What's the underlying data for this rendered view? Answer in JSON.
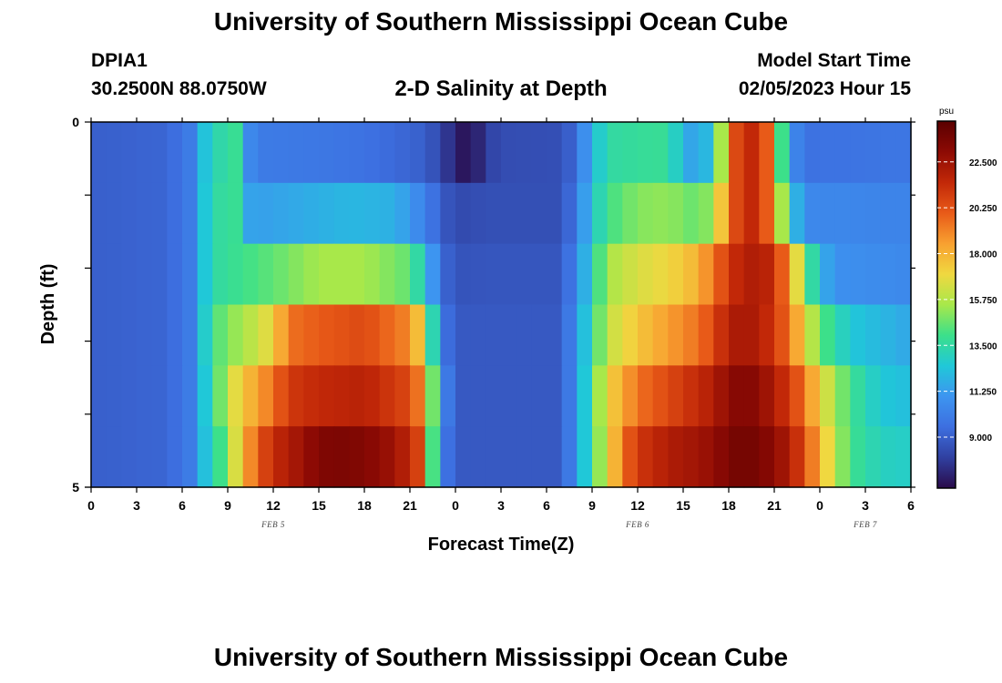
{
  "header": {
    "title": "University of Southern Mississippi Ocean Cube",
    "station": "DPIA1",
    "coordinates": "30.2500N  88.0750W",
    "plot_title": "2-D Salinity at Depth",
    "start_label": "Model Start Time",
    "start_value": "02/05/2023 Hour 15"
  },
  "footer": {
    "title": "University of Southern Mississippi Ocean Cube"
  },
  "colors": {
    "colormap": [
      "#2a0b4a",
      "#3040a0",
      "#3d6fe0",
      "#3d95f0",
      "#20c8d8",
      "#3ce08a",
      "#a8e84a",
      "#f0d840",
      "#f8a030",
      "#e85a18",
      "#c22808",
      "#8c0a04",
      "#5a0000"
    ]
  },
  "chart_data": {
    "type": "heatmap",
    "title": "2-D Salinity at Depth",
    "xlabel": "Forecast Time(Z)",
    "ylabel": "Depth (ft)",
    "x_tick_labels": [
      "0",
      "3",
      "6",
      "9",
      "12",
      "15",
      "18",
      "21",
      "0",
      "3",
      "6",
      "9",
      "12",
      "15",
      "18",
      "21",
      "0",
      "3",
      "6"
    ],
    "x_range_hours": [
      0,
      54
    ],
    "date_labels": [
      {
        "label": "FEB 5",
        "hour": 12
      },
      {
        "label": "FEB 6",
        "hour": 36
      },
      {
        "label": "FEB 7",
        "hour": 51
      }
    ],
    "y_tick_labels": [
      "0",
      "5"
    ],
    "ylim": [
      0,
      5
    ],
    "colorbar": {
      "unit": "psu",
      "min": 6.5,
      "max": 24.5,
      "ticks": [
        9.0,
        11.25,
        13.5,
        15.75,
        18.0,
        20.25,
        22.5
      ],
      "tick_labels": [
        "9.000",
        "11.250",
        "13.500",
        "15.750",
        "18.000",
        "20.250",
        "22.500"
      ]
    },
    "depth_layers": [
      {
        "layer": 1,
        "keyframes": [
          [
            0,
            9
          ],
          [
            5,
            9.2
          ],
          [
            6.5,
            10
          ],
          [
            7,
            11.5
          ],
          [
            8,
            13.2
          ],
          [
            9.5,
            13.8
          ],
          [
            10,
            11
          ],
          [
            11,
            10
          ],
          [
            16,
            9.8
          ],
          [
            19,
            9.5
          ],
          [
            22,
            9.0
          ],
          [
            23,
            8.2
          ],
          [
            24,
            7.2
          ],
          [
            25,
            6.5
          ],
          [
            26,
            8.0
          ],
          [
            27,
            8.4
          ],
          [
            31,
            8.5
          ],
          [
            32,
            9.5
          ],
          [
            33,
            12
          ],
          [
            34,
            13.5
          ],
          [
            36,
            13.7
          ],
          [
            38,
            13.8
          ],
          [
            39,
            12
          ],
          [
            40,
            11
          ],
          [
            41,
            13
          ],
          [
            41.5,
            15.5
          ],
          [
            42,
            19.5
          ],
          [
            43,
            21.5
          ],
          [
            44,
            21.5
          ],
          [
            44.5,
            20
          ],
          [
            45,
            17
          ],
          [
            46,
            11
          ],
          [
            47,
            9.6
          ],
          [
            54,
            9.8
          ]
        ]
      },
      {
        "layer": 2,
        "keyframes": [
          [
            0,
            9
          ],
          [
            5,
            9.2
          ],
          [
            6.5,
            10
          ],
          [
            7,
            11.5
          ],
          [
            8,
            13.5
          ],
          [
            9.5,
            13.8
          ],
          [
            10,
            11.5
          ],
          [
            11,
            11.3
          ],
          [
            17,
            12
          ],
          [
            20,
            11.8
          ],
          [
            22,
            10.2
          ],
          [
            23,
            9.0
          ],
          [
            24,
            8.3
          ],
          [
            26,
            8.5
          ],
          [
            31,
            8.5
          ],
          [
            32,
            10
          ],
          [
            33,
            12.5
          ],
          [
            34,
            14
          ],
          [
            36,
            15
          ],
          [
            38,
            15.2
          ],
          [
            40,
            14.5
          ],
          [
            41,
            15.5
          ],
          [
            42,
            19.5
          ],
          [
            43,
            21.5
          ],
          [
            44,
            21.5
          ],
          [
            44.5,
            20
          ],
          [
            45,
            18
          ],
          [
            46,
            13
          ],
          [
            47,
            10.5
          ],
          [
            54,
            10.3
          ]
        ]
      },
      {
        "layer": 3,
        "keyframes": [
          [
            0,
            9
          ],
          [
            5,
            9.2
          ],
          [
            6.5,
            10
          ],
          [
            7,
            11.5
          ],
          [
            8,
            13.5
          ],
          [
            10,
            14
          ],
          [
            12,
            14.5
          ],
          [
            15,
            15.5
          ],
          [
            18,
            15.5
          ],
          [
            21,
            14.5
          ],
          [
            22,
            12.5
          ],
          [
            23,
            9.5
          ],
          [
            24,
            8.6
          ],
          [
            26,
            8.7
          ],
          [
            31,
            8.7
          ],
          [
            32,
            10.5
          ],
          [
            33,
            13
          ],
          [
            34,
            15.5
          ],
          [
            36,
            16.5
          ],
          [
            38,
            17.0
          ],
          [
            40,
            18
          ],
          [
            41,
            19.5
          ],
          [
            42,
            21
          ],
          [
            43,
            22
          ],
          [
            44,
            22
          ],
          [
            45,
            21.5
          ],
          [
            46,
            18.5
          ],
          [
            47,
            15
          ],
          [
            48,
            12
          ],
          [
            49,
            10.8
          ],
          [
            54,
            10.5
          ]
        ]
      },
      {
        "layer": 4,
        "keyframes": [
          [
            0,
            9
          ],
          [
            5,
            9.2
          ],
          [
            6.5,
            10
          ],
          [
            7,
            11.5
          ],
          [
            8,
            14
          ],
          [
            9,
            15
          ],
          [
            10,
            15.5
          ],
          [
            12,
            17
          ],
          [
            13,
            19.5
          ],
          [
            15,
            20
          ],
          [
            18,
            20.5
          ],
          [
            21,
            19
          ],
          [
            22,
            16.5
          ],
          [
            23,
            10
          ],
          [
            24,
            8.8
          ],
          [
            26,
            8.8
          ],
          [
            31,
            8.8
          ],
          [
            32,
            11
          ],
          [
            33,
            13.5
          ],
          [
            34,
            16
          ],
          [
            36,
            17.5
          ],
          [
            38,
            18.5
          ],
          [
            40,
            19.5
          ],
          [
            41,
            20.5
          ],
          [
            42,
            22
          ],
          [
            43,
            22.3
          ],
          [
            44,
            22
          ],
          [
            45,
            21
          ],
          [
            46,
            19.5
          ],
          [
            47,
            17
          ],
          [
            48,
            14.5
          ],
          [
            50,
            12.5
          ],
          [
            54,
            11.5
          ]
        ]
      },
      {
        "layer": 5,
        "keyframes": [
          [
            0,
            9
          ],
          [
            5,
            9.2
          ],
          [
            6.5,
            10
          ],
          [
            7,
            11.5
          ],
          [
            8,
            13.5
          ],
          [
            9,
            16
          ],
          [
            10,
            17.5
          ],
          [
            12,
            19.5
          ],
          [
            13,
            21
          ],
          [
            15,
            21.5
          ],
          [
            18,
            21.8
          ],
          [
            21,
            20.5
          ],
          [
            22,
            18.5
          ],
          [
            23,
            11
          ],
          [
            24,
            8.8
          ],
          [
            26,
            8.8
          ],
          [
            31,
            8.8
          ],
          [
            32,
            11
          ],
          [
            33,
            14
          ],
          [
            34,
            17
          ],
          [
            36,
            19.5
          ],
          [
            38,
            20.5
          ],
          [
            40,
            21.5
          ],
          [
            41,
            22
          ],
          [
            42,
            23
          ],
          [
            43,
            23.3
          ],
          [
            44,
            23
          ],
          [
            45,
            22
          ],
          [
            46,
            21
          ],
          [
            47,
            19.5
          ],
          [
            48,
            17
          ],
          [
            50,
            14
          ],
          [
            52,
            12.5
          ],
          [
            54,
            12.2
          ]
        ]
      },
      {
        "layer": 6,
        "keyframes": [
          [
            0,
            9
          ],
          [
            5,
            9.2
          ],
          [
            6.5,
            10
          ],
          [
            7,
            11.5
          ],
          [
            8,
            13
          ],
          [
            9,
            15
          ],
          [
            10,
            18
          ],
          [
            11,
            20
          ],
          [
            12,
            21.5
          ],
          [
            13,
            22
          ],
          [
            15,
            23.3
          ],
          [
            16,
            23.5
          ],
          [
            18,
            23.3
          ],
          [
            20,
            22.5
          ],
          [
            21,
            21.5
          ],
          [
            22,
            20
          ],
          [
            22.6,
            13
          ],
          [
            23.2,
            10
          ],
          [
            24,
            8.8
          ],
          [
            26,
            8.8
          ],
          [
            31,
            8.8
          ],
          [
            32,
            11
          ],
          [
            33,
            14
          ],
          [
            34,
            16.5
          ],
          [
            35,
            19.5
          ],
          [
            36,
            21
          ],
          [
            38,
            22
          ],
          [
            40,
            22.5
          ],
          [
            41,
            22.8
          ],
          [
            42,
            23.5
          ],
          [
            43,
            23.8
          ],
          [
            44,
            23.5
          ],
          [
            45,
            23
          ],
          [
            46,
            22
          ],
          [
            47,
            20.5
          ],
          [
            48,
            18
          ],
          [
            49,
            16
          ],
          [
            50,
            14
          ],
          [
            52,
            13
          ],
          [
            54,
            12.8
          ]
        ]
      }
    ]
  }
}
